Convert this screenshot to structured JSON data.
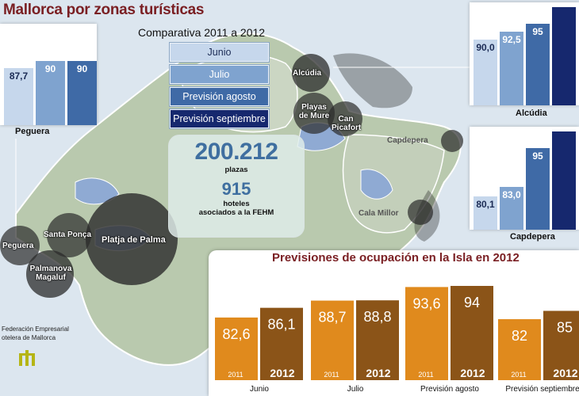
{
  "title": "Mallorca por zonas turísticas",
  "subtitle": "Comparativa  2011 a 2012",
  "legend": [
    {
      "label": "Junio",
      "color": "#c6d7ec"
    },
    {
      "label": "Julio",
      "color": "#7fa3cf"
    },
    {
      "label": "Previsión agosto",
      "color": "#3f6aa6"
    },
    {
      "label": "Previsión septiembre",
      "color": "#16286e"
    }
  ],
  "stats": {
    "plazas_value": "200.212",
    "plazas_label": "plazas",
    "hoteles_value": "915",
    "hoteles_label": "hoteles",
    "hoteles_sub": "asociados a la FEHM"
  },
  "zones": [
    "Alcúdia",
    "Playas de Muro",
    "Can Picafort",
    "Capdepera",
    "Cala Millor",
    "Peguera",
    "Santa Ponça",
    "Platja de Palma",
    "Palmanova Magaluf"
  ],
  "federation": {
    "line1": "Federación Empresarial",
    "line2": "otelera de Mallorca"
  },
  "bottom_title": "Previsiones de ocupación en la Isla en 2012",
  "colors": {
    "orange2011": "#e08a1d",
    "brown2012": "#8b5418",
    "title_red": "#7a1f23",
    "bg_map_light": "#b4c7aa",
    "bg_map_sea": "#a9bedc"
  },
  "chart_data": [
    {
      "type": "bar",
      "title": "Peguera",
      "categories": [
        "Junio",
        "Julio",
        "Previsión agosto",
        "Previsión septiembre"
      ],
      "values": [
        87.7,
        90,
        90,
        null
      ],
      "labels": [
        "87,7",
        "90",
        "90",
        ""
      ],
      "ylim": [
        70,
        100
      ]
    },
    {
      "type": "bar",
      "title": "Alcúdia",
      "categories": [
        "Junio",
        "Julio",
        "Previsión agosto",
        "Previsión septiembre"
      ],
      "values": [
        90.0,
        92.5,
        95,
        null
      ],
      "labels": [
        "90,0",
        "92,5",
        "95",
        ""
      ],
      "ylim": [
        70,
        100
      ]
    },
    {
      "type": "bar",
      "title": "Capdepera",
      "categories": [
        "Junio",
        "Julio",
        "Previsión agosto",
        "Previsión septiembre"
      ],
      "values": [
        80.1,
        83.0,
        95,
        null
      ],
      "labels": [
        "80,1",
        "83,0",
        "95",
        ""
      ],
      "ylim": [
        70,
        100
      ]
    },
    {
      "type": "bar",
      "title": "Previsiones de ocupación en la Isla en 2012",
      "categories": [
        "Junio",
        "Julio",
        "Previsión agosto",
        "Previsión septiembre"
      ],
      "series": [
        {
          "name": "2011",
          "values": [
            82.6,
            88.7,
            93.6,
            82
          ],
          "labels": [
            "82,6",
            "88,7",
            "93,6",
            "82"
          ]
        },
        {
          "name": "2012",
          "values": [
            86.1,
            88.8,
            94,
            85
          ],
          "labels": [
            "86,1",
            "88,8",
            "94",
            "85"
          ]
        }
      ],
      "ylim": [
        60,
        100
      ]
    }
  ]
}
